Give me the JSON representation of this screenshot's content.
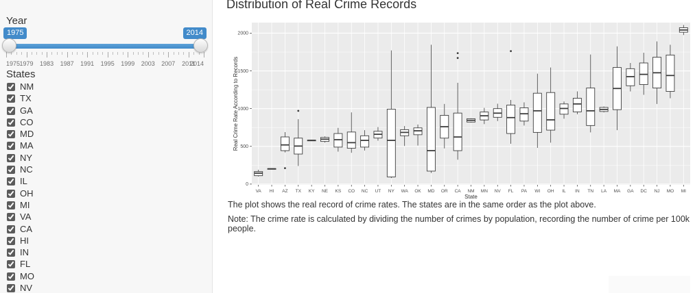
{
  "sidebar": {
    "year_label": "Year",
    "slider": {
      "min": 1975,
      "max": 2014,
      "from": "1975",
      "to": "2014",
      "tick_labels": [
        "1975",
        "1979",
        "1983",
        "1987",
        "1991",
        "1995",
        "1999",
        "2003",
        "2007",
        "2011",
        "2014"
      ],
      "accent_color": "#428bca"
    },
    "states_label": "States",
    "states": [
      {
        "label": "NM",
        "checked": true
      },
      {
        "label": "TX",
        "checked": true
      },
      {
        "label": "GA",
        "checked": true
      },
      {
        "label": "CO",
        "checked": true
      },
      {
        "label": "MD",
        "checked": true
      },
      {
        "label": "MA",
        "checked": true
      },
      {
        "label": "NY",
        "checked": true
      },
      {
        "label": "NC",
        "checked": true
      },
      {
        "label": "IL",
        "checked": true
      },
      {
        "label": "OH",
        "checked": true
      },
      {
        "label": "MI",
        "checked": true
      },
      {
        "label": "VA",
        "checked": true
      },
      {
        "label": "CA",
        "checked": true
      },
      {
        "label": "HI",
        "checked": true
      },
      {
        "label": "IN",
        "checked": true
      },
      {
        "label": "FL",
        "checked": true
      },
      {
        "label": "MO",
        "checked": true
      },
      {
        "label": "NV",
        "checked": true
      }
    ]
  },
  "main": {
    "title": "Distribution of Real Crime Records",
    "note1": "The plot shows the real record of crime rates. The states are in the same order as the plot above.",
    "note2": "Note: The crime rate is calculated by dividing the number of crimes by population, recording the number of crime per 100k people."
  },
  "chart_data": {
    "type": "boxplot",
    "title": "Distribution of Real Crime Records",
    "xlabel": "State",
    "ylabel": "Real Crime Rate According to Records",
    "ylim": [
      -10,
      2140
    ],
    "yticks": [
      0,
      500,
      1000,
      1500,
      2000
    ],
    "yminor": [
      250,
      750,
      1250,
      1750
    ],
    "panel_bg": "#ebebeb",
    "grid_color": "#ffffff",
    "box_stroke": "#3c3c3c",
    "legend": "none",
    "categories": [
      "VA",
      "HI",
      "AZ",
      "TX",
      "KY",
      "NE",
      "KS",
      "CO",
      "NC",
      "UT",
      "NY",
      "WA",
      "OK",
      "MD",
      "OR",
      "CA",
      "NM",
      "MN",
      "NV",
      "FL",
      "PA",
      "WI",
      "OH",
      "IL",
      "IN",
      "TN",
      "LA",
      "MA",
      "GA",
      "DC",
      "NJ",
      "MO",
      "MI"
    ],
    "boxes": [
      {
        "state": "VA",
        "whisker_low": 100,
        "q1": 111,
        "median": 145,
        "q3": 166,
        "whisker_high": 190,
        "outliers": []
      },
      {
        "state": "HI",
        "whisker_low": 196,
        "q1": 200,
        "median": 202,
        "q3": 205,
        "whisker_high": 209,
        "outliers": []
      },
      {
        "state": "AZ",
        "whisker_low": 420,
        "q1": 443,
        "median": 519,
        "q3": 625,
        "whisker_high": 688,
        "outliers": [
          211
        ]
      },
      {
        "state": "TX",
        "whisker_low": 240,
        "q1": 398,
        "median": 504,
        "q3": 609,
        "whisker_high": 860,
        "outliers": [
          971
        ]
      },
      {
        "state": "KY",
        "whisker_low": 572,
        "q1": 576,
        "median": 579,
        "q3": 582,
        "whisker_high": 586,
        "outliers": []
      },
      {
        "state": "NE",
        "whisker_low": 550,
        "q1": 565,
        "median": 595,
        "q3": 618,
        "whisker_high": 632,
        "outliers": []
      },
      {
        "state": "KS",
        "whisker_low": 430,
        "q1": 490,
        "median": 588,
        "q3": 670,
        "whisker_high": 745,
        "outliers": []
      },
      {
        "state": "CO",
        "whisker_low": 415,
        "q1": 475,
        "median": 549,
        "q3": 690,
        "whisker_high": 950,
        "outliers": []
      },
      {
        "state": "NC",
        "whisker_low": 445,
        "q1": 490,
        "median": 579,
        "q3": 640,
        "whisker_high": 715,
        "outliers": []
      },
      {
        "state": "UT",
        "whisker_low": 575,
        "q1": 610,
        "median": 660,
        "q3": 700,
        "whisker_high": 755,
        "outliers": []
      },
      {
        "state": "NY",
        "whisker_low": 80,
        "q1": 95,
        "median": 579,
        "q3": 993,
        "whisker_high": 1771,
        "outliers": []
      },
      {
        "state": "WA",
        "whisker_low": 505,
        "q1": 640,
        "median": 685,
        "q3": 721,
        "whisker_high": 769,
        "outliers": []
      },
      {
        "state": "OK",
        "whisker_low": 510,
        "q1": 654,
        "median": 706,
        "q3": 745,
        "whisker_high": 790,
        "outliers": []
      },
      {
        "state": "MD",
        "whisker_low": 148,
        "q1": 172,
        "median": 443,
        "q3": 1016,
        "whisker_high": 1846,
        "outliers": []
      },
      {
        "state": "OR",
        "whisker_low": 473,
        "q1": 609,
        "median": 760,
        "q3": 911,
        "whisker_high": 1062,
        "outliers": []
      },
      {
        "state": "CA",
        "whisker_low": 323,
        "q1": 443,
        "median": 624,
        "q3": 941,
        "whisker_high": 1342,
        "outliers": [
          1671,
          1735
        ]
      },
      {
        "state": "NM",
        "whisker_low": 815,
        "q1": 822,
        "median": 845,
        "q3": 866,
        "whisker_high": 872,
        "outliers": []
      },
      {
        "state": "MN",
        "whisker_low": 795,
        "q1": 850,
        "median": 905,
        "q3": 955,
        "whisker_high": 1010,
        "outliers": []
      },
      {
        "state": "NV",
        "whisker_low": 835,
        "q1": 885,
        "median": 940,
        "q3": 1000,
        "whisker_high": 1065,
        "outliers": []
      },
      {
        "state": "FL",
        "whisker_low": 534,
        "q1": 670,
        "median": 881,
        "q3": 1047,
        "whisker_high": 1115,
        "outliers": [
          1762
        ]
      },
      {
        "state": "PA",
        "whisker_low": 776,
        "q1": 835,
        "median": 932,
        "q3": 1011,
        "whisker_high": 1083,
        "outliers": []
      },
      {
        "state": "WI",
        "whisker_low": 480,
        "q1": 685,
        "median": 971,
        "q3": 1204,
        "whisker_high": 1463,
        "outliers": []
      },
      {
        "state": "OH",
        "whisker_low": 549,
        "q1": 715,
        "median": 851,
        "q3": 1213,
        "whisker_high": 1545,
        "outliers": []
      },
      {
        "state": "IL",
        "whisker_low": 866,
        "q1": 926,
        "median": 1002,
        "q3": 1062,
        "whisker_high": 1095,
        "outliers": []
      },
      {
        "state": "IN",
        "whisker_low": 926,
        "q1": 957,
        "median": 1062,
        "q3": 1138,
        "whisker_high": 1228,
        "outliers": []
      },
      {
        "state": "TN",
        "whisker_low": 685,
        "q1": 776,
        "median": 971,
        "q3": 1273,
        "whisker_high": 1717,
        "outliers": []
      },
      {
        "state": "LA",
        "whisker_low": 950,
        "q1": 962,
        "median": 989,
        "q3": 1016,
        "whisker_high": 1028,
        "outliers": []
      },
      {
        "state": "MA",
        "whisker_low": 715,
        "q1": 986,
        "median": 1267,
        "q3": 1545,
        "whisker_high": 1825,
        "outliers": []
      },
      {
        "state": "GA",
        "whisker_low": 1228,
        "q1": 1303,
        "median": 1424,
        "q3": 1529,
        "whisker_high": 1605,
        "outliers": []
      },
      {
        "state": "DC",
        "whisker_low": 1183,
        "q1": 1319,
        "median": 1454,
        "q3": 1605,
        "whisker_high": 1740,
        "outliers": []
      },
      {
        "state": "NJ",
        "whisker_low": 1062,
        "q1": 1273,
        "median": 1475,
        "q3": 1681,
        "whisker_high": 1891,
        "outliers": []
      },
      {
        "state": "MO",
        "whisker_low": 1138,
        "q1": 1228,
        "median": 1439,
        "q3": 1710,
        "whisker_high": 1846,
        "outliers": []
      },
      {
        "state": "MI",
        "whisker_low": 1975,
        "q1": 2012,
        "median": 2042,
        "q3": 2072,
        "whisker_high": 2109,
        "outliers": []
      }
    ]
  }
}
